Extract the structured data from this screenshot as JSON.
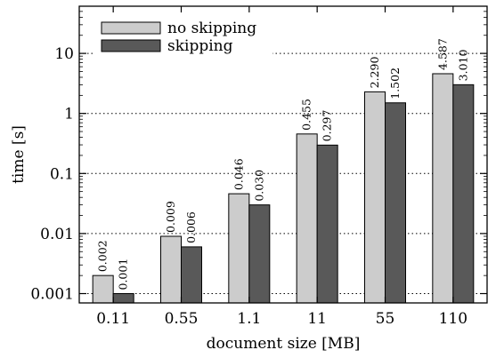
{
  "chart_data": {
    "type": "bar",
    "title": "",
    "xlabel": "document size [MB]",
    "ylabel": "time [s]",
    "yscale": "log",
    "ylim": [
      0.001,
      50
    ],
    "grid": "horizontal dotted",
    "legend_placement": "top-left",
    "categories": [
      "0.11",
      "0.55",
      "1.1",
      "11",
      "55",
      "110"
    ],
    "y_tick_labels": [
      "0.001",
      "0.01",
      "0.1",
      "1",
      "10"
    ],
    "series": [
      {
        "name": "no skipping",
        "color": "#cccccc",
        "values": [
          0.002,
          0.009,
          0.046,
          0.455,
          2.29,
          4.587
        ],
        "labels": [
          "0.002",
          "0.009",
          "0.046",
          "0.455",
          "2.290",
          "4.587"
        ]
      },
      {
        "name": "skipping",
        "color": "#595959",
        "values": [
          0.001,
          0.006,
          0.03,
          0.297,
          1.502,
          3.01
        ],
        "labels": [
          "0.001",
          "0.006",
          "0.030",
          "0.297",
          "1.502",
          "3.010"
        ]
      }
    ]
  }
}
